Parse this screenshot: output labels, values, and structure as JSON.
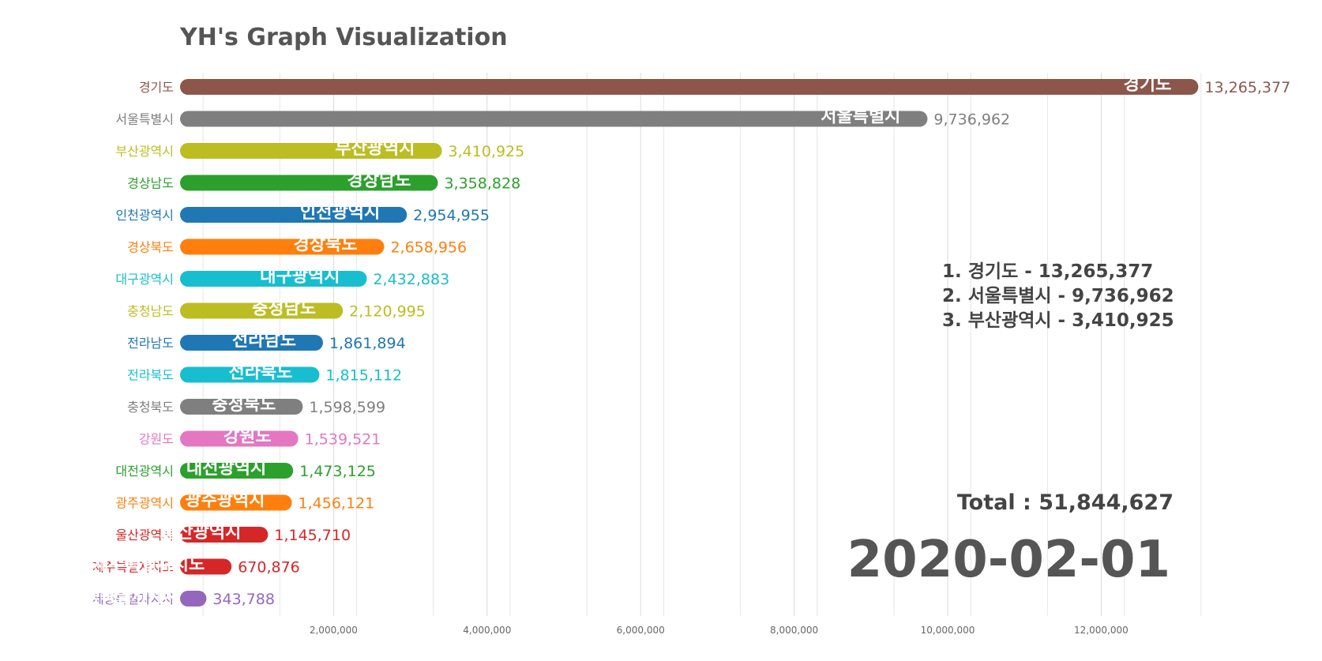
{
  "chart_data": {
    "type": "bar",
    "title": "YH's Graph Visualization",
    "orientation": "horizontal",
    "categories": [
      "경기도",
      "서울특별시",
      "부산광역시",
      "경상남도",
      "인천광역시",
      "경상북도",
      "대구광역시",
      "충청남도",
      "전라남도",
      "전라북도",
      "충청북도",
      "강원도",
      "대전광역시",
      "광주광역시",
      "울산광역시",
      "제주특별자치도",
      "세종특별자치시"
    ],
    "values": [
      13265377,
      9736962,
      3410925,
      3358828,
      2954955,
      2658956,
      2432883,
      2120995,
      1861894,
      1815112,
      1598599,
      1539521,
      1473125,
      1456121,
      1145710,
      670876,
      343788
    ],
    "value_labels": [
      "13,265,377",
      "9,736,962",
      "3,410,925",
      "3,358,828",
      "2,954,955",
      "2,658,956",
      "2,432,883",
      "2,120,995",
      "1,861,894",
      "1,815,112",
      "1,598,599",
      "1,539,521",
      "1,473,125",
      "1,456,121",
      "1,145,710",
      "670,876",
      "343,788"
    ],
    "colors": [
      "#8c564b",
      "#7f7f7f",
      "#bcbd22",
      "#2ca02c",
      "#1f77b4",
      "#ff7f0e",
      "#17becf",
      "#bcbd22",
      "#1f77b4",
      "#17becf",
      "#7f7f7f",
      "#e377c2",
      "#2ca02c",
      "#ff7f0e",
      "#d62728",
      "#d62728",
      "#9467bd"
    ],
    "x_ticks": [
      2000000,
      4000000,
      6000000,
      8000000,
      10000000,
      12000000
    ],
    "x_tick_labels": [
      "2,000,000",
      "4,000,000",
      "6,000,000",
      "8,000,000",
      "10,000,000",
      "12,000,000"
    ],
    "grid": true,
    "xlabel": "",
    "ylabel": ""
  },
  "ranking": [
    "1. 경기도 - 13,265,377",
    "2. 서울특별시 - 9,736,962",
    "3. 부산광역시 - 3,410,925"
  ],
  "total_label": "Total : 51,844,627",
  "date_label": "2020-02-01"
}
